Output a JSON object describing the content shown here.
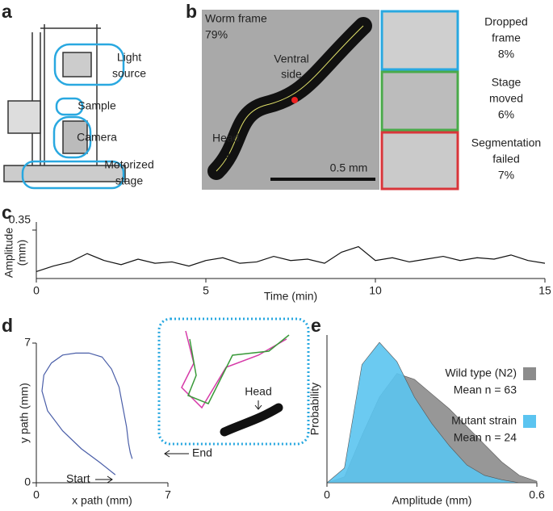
{
  "panel_labels": [
    "a",
    "b",
    "c",
    "d",
    "e"
  ],
  "panel_a": {
    "labels": [
      {
        "lines": [
          "Light",
          "source"
        ]
      },
      {
        "lines": [
          "Sample"
        ]
      },
      {
        "lines": [
          "Camera"
        ]
      },
      {
        "lines": [
          "Motorized",
          "stage"
        ]
      }
    ]
  },
  "panel_b": {
    "worm_frame": "Worm frame",
    "worm_frame_pct": "79%",
    "ventral": [
      "Ventral",
      "side"
    ],
    "head": "Head",
    "scale_bar": "0.5 mm",
    "categories": [
      {
        "lines": [
          "Dropped",
          "frame"
        ],
        "pct": "8%"
      },
      {
        "lines": [
          "Stage",
          "moved"
        ],
        "pct": "6%"
      },
      {
        "lines": [
          "Segmentation",
          "failed"
        ],
        "pct": "7%"
      }
    ]
  },
  "chart_data": [
    {
      "type": "line",
      "ylabel": [
        "Amplitude",
        "(mm)"
      ],
      "xlabel": "Time (min)",
      "x": [
        0,
        0.5,
        1,
        1.5,
        2,
        2.5,
        3,
        3.5,
        4,
        4.5,
        5,
        5.5,
        6,
        6.5,
        7,
        7.5,
        8,
        8.5,
        9,
        9.5,
        10,
        10.5,
        11,
        11.5,
        12,
        12.5,
        13,
        13.5,
        14,
        14.5,
        15
      ],
      "values": [
        0.05,
        0.09,
        0.12,
        0.18,
        0.13,
        0.1,
        0.14,
        0.11,
        0.12,
        0.09,
        0.13,
        0.15,
        0.11,
        0.12,
        0.16,
        0.13,
        0.14,
        0.11,
        0.19,
        0.23,
        0.13,
        0.15,
        0.12,
        0.14,
        0.16,
        0.13,
        0.15,
        0.14,
        0.17,
        0.13,
        0.11
      ],
      "color": "#111111",
      "xlim": [
        0,
        15
      ],
      "xticks": [
        0,
        5,
        10,
        15
      ],
      "ylim": [
        0,
        0.35
      ],
      "yticks": [
        0.35
      ]
    },
    {
      "type": "line",
      "xlabel": "x path (mm)",
      "ylabel": "y path (mm)",
      "x": [
        4.2,
        3.4,
        2.4,
        1.4,
        0.6,
        0.3,
        0.4,
        0.8,
        1.4,
        2.1,
        2.8,
        3.5,
        4.0,
        4.4,
        4.6,
        4.8,
        4.9,
        5.0,
        5.1
      ],
      "values": [
        0.4,
        1.0,
        1.7,
        2.6,
        3.6,
        4.6,
        5.4,
        6.0,
        6.4,
        6.5,
        6.5,
        6.3,
        5.7,
        4.8,
        3.8,
        2.8,
        2.0,
        1.5,
        1.2
      ],
      "color": "#4a5ea8",
      "xlim": [
        0,
        7
      ],
      "ylim": [
        0,
        7
      ],
      "xticks": [
        0,
        7
      ],
      "yticks": [
        0,
        7
      ],
      "annotations": {
        "start": "Start",
        "end": "End",
        "head": "Head"
      }
    },
    {
      "type": "area",
      "xlabel": "Amplitude (mm)",
      "ylabel": "Probability",
      "x": [
        0,
        0.05,
        0.1,
        0.15,
        0.2,
        0.25,
        0.3,
        0.35,
        0.4,
        0.45,
        0.5,
        0.55,
        0.6
      ],
      "series": [
        {
          "name": "Wild type (N2)",
          "mean_label": "Mean n = 63",
          "color": "#8c8c8c",
          "values": [
            0,
            0.04,
            0.32,
            0.58,
            0.74,
            0.7,
            0.6,
            0.5,
            0.38,
            0.26,
            0.14,
            0.05,
            0.01
          ]
        },
        {
          "name": "Mutant strain",
          "mean_label": "Mean n = 24",
          "color": "#5bc4f0",
          "values": [
            0,
            0.1,
            0.8,
            0.95,
            0.82,
            0.58,
            0.4,
            0.25,
            0.12,
            0.05,
            0.02,
            0,
            0
          ]
        }
      ],
      "xlim": [
        0,
        0.6
      ],
      "xticks": [
        0,
        0.6
      ],
      "ylim": [
        0,
        1
      ]
    }
  ]
}
